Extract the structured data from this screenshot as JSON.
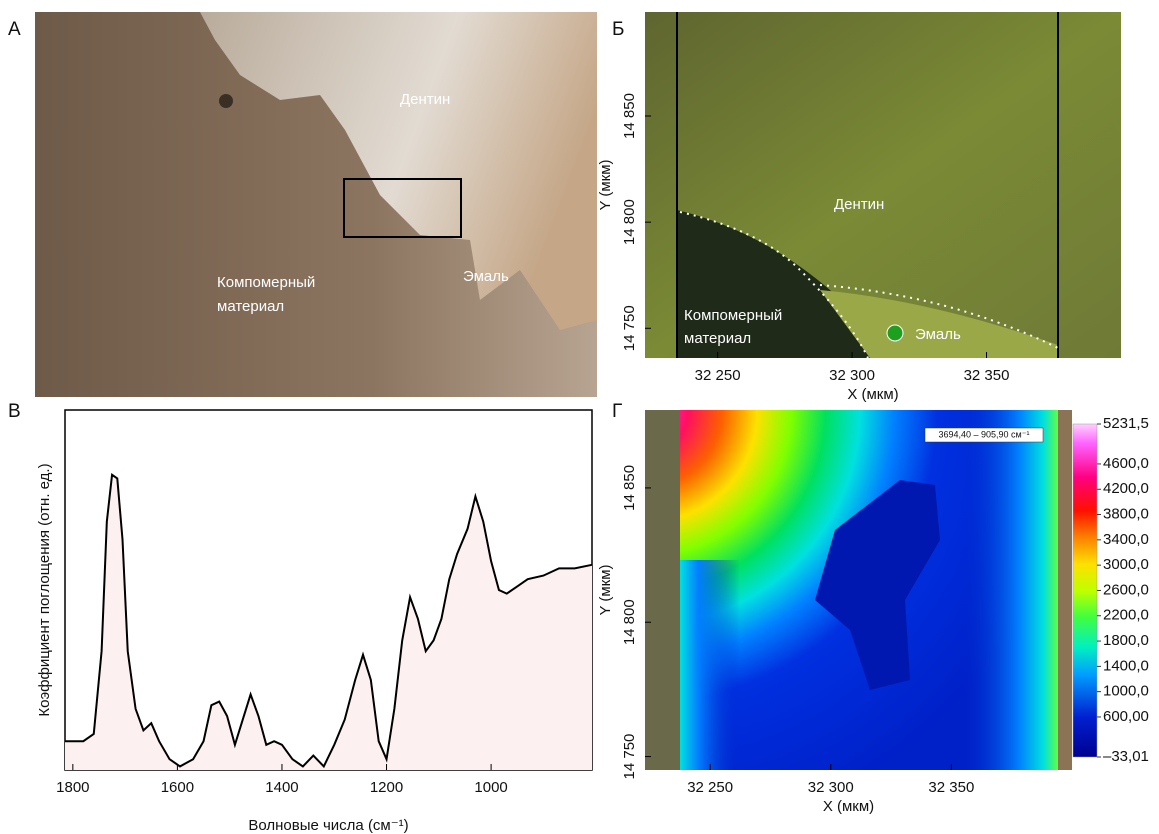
{
  "figure": {
    "panels": [
      {
        "letter": "А",
        "labels": [
          "Дентин",
          "Эмаль",
          "Компомерный",
          "материал"
        ]
      },
      {
        "letter": "Б",
        "labels": [
          "Дентин",
          "Компомерный",
          "материал",
          "Эмаль"
        ]
      },
      {
        "letter": "В"
      },
      {
        "letter": "Г"
      }
    ]
  },
  "chart_data": [
    {
      "type": "image",
      "xlim": [
        32223,
        32400
      ],
      "ylim": [
        14736,
        14899
      ],
      "xticks": [
        {
          "value": 32250,
          "label": "32 250"
        },
        {
          "value": 32300,
          "label": "32 300"
        },
        {
          "value": 32350,
          "label": "32 350"
        }
      ],
      "yticks": [
        {
          "value": 14750,
          "label": "14 750"
        },
        {
          "value": 14800,
          "label": "14 800"
        },
        {
          "value": 14850,
          "label": "14 850"
        }
      ],
      "xlabel": "X (мкм)",
      "ylabel": "Y (мкм)"
    },
    {
      "type": "line",
      "color": "#000000",
      "fill": "#fcf0f0",
      "xlim": [
        1815,
        807
      ],
      "ylim": [
        0,
        1
      ],
      "xticks": [
        1800,
        1600,
        1400,
        1200,
        1000
      ],
      "xlabel": "Волновые числа (см⁻¹)",
      "ylabel": "Коэффициент поглощения (отн. ед.)",
      "x": [
        1815,
        1780,
        1760,
        1745,
        1735,
        1725,
        1715,
        1705,
        1695,
        1680,
        1665,
        1650,
        1635,
        1615,
        1595,
        1570,
        1550,
        1535,
        1520,
        1505,
        1490,
        1475,
        1460,
        1445,
        1430,
        1415,
        1400,
        1380,
        1360,
        1340,
        1320,
        1300,
        1280,
        1260,
        1245,
        1230,
        1215,
        1200,
        1185,
        1170,
        1155,
        1140,
        1125,
        1110,
        1095,
        1080,
        1065,
        1045,
        1030,
        1015,
        1000,
        985,
        970,
        950,
        930,
        900,
        870,
        840,
        807
      ],
      "values": [
        0.08,
        0.08,
        0.1,
        0.33,
        0.69,
        0.82,
        0.81,
        0.64,
        0.33,
        0.17,
        0.11,
        0.13,
        0.08,
        0.03,
        0.01,
        0.03,
        0.08,
        0.18,
        0.19,
        0.15,
        0.07,
        0.14,
        0.21,
        0.15,
        0.07,
        0.08,
        0.07,
        0.03,
        0.01,
        0.04,
        0.01,
        0.07,
        0.14,
        0.25,
        0.32,
        0.25,
        0.08,
        0.03,
        0.17,
        0.36,
        0.48,
        0.42,
        0.33,
        0.36,
        0.42,
        0.53,
        0.6,
        0.67,
        0.76,
        0.69,
        0.58,
        0.5,
        0.49,
        0.51,
        0.53,
        0.54,
        0.56,
        0.56,
        0.57
      ]
    },
    {
      "type": "heatmap",
      "xlim": [
        32223,
        32400
      ],
      "ylim": [
        14745,
        14879
      ],
      "xticks": [
        {
          "value": 32250,
          "label": "32 250"
        },
        {
          "value": 32300,
          "label": "32 300"
        },
        {
          "value": 32350,
          "label": "32 350"
        }
      ],
      "yticks": [
        {
          "value": 14750,
          "label": "14 750"
        },
        {
          "value": 14800,
          "label": "14 800"
        },
        {
          "value": 14850,
          "label": "14 850"
        }
      ],
      "xlabel": "X (мкм)",
      "ylabel": "Y (мкм)",
      "annotation": "3694,40 – 905,90 см⁻¹",
      "colorbar": {
        "lim": [
          -33.01,
          5231.5
        ],
        "ticks": [
          {
            "value": 5231.5,
            "label": "5231,5"
          },
          {
            "value": 4600,
            "label": "4600,0"
          },
          {
            "value": 4200,
            "label": "4200,0"
          },
          {
            "value": 3800,
            "label": "3800,0"
          },
          {
            "value": 3400,
            "label": "3400,0"
          },
          {
            "value": 3000,
            "label": "3000,0"
          },
          {
            "value": 2600,
            "label": "2600,0"
          },
          {
            "value": 2200,
            "label": "2200,0"
          },
          {
            "value": 1800,
            "label": "1800,0"
          },
          {
            "value": 1400,
            "label": "1400,0"
          },
          {
            "value": 1000,
            "label": "1000,0"
          },
          {
            "value": 600,
            "label": "600,00"
          },
          {
            "value": -33.01,
            "label": "–33,01"
          }
        ]
      }
    }
  ]
}
